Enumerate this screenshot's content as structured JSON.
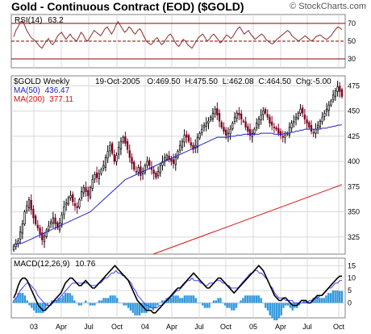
{
  "header": {
    "title": "Gold - Continuous Contract (EOD) ($GOLD)",
    "copyright": "© StockCharts.com"
  },
  "colors": {
    "panel_bg": "#ffffff",
    "grid": "#d8d8d8",
    "rsi_line": "#8b2a2a",
    "rsi_fill": "#c89a60",
    "rsi_bounds": "#8b0000",
    "candle_up": "#000000",
    "candle_down": "#800020",
    "ma50": "#2222cc",
    "ma200": "#dd1111",
    "macd": "#000000",
    "signal": "#4040ff",
    "histogram": "#3399dd"
  },
  "chart_data": [
    {
      "panel": "rsi",
      "type": "line",
      "label": "RSI(14)",
      "label_value": "63.2",
      "ylim": [
        20,
        80
      ],
      "yticks": [
        30,
        50,
        70
      ],
      "bounds": [
        30,
        70
      ],
      "midline": 50,
      "values": [
        55,
        62,
        66,
        71,
        73,
        68,
        62,
        58,
        54,
        52,
        50,
        47,
        44,
        42,
        46,
        50,
        53,
        48,
        46,
        50,
        55,
        58,
        60,
        56,
        52,
        55,
        58,
        54,
        52,
        50,
        55,
        60,
        57,
        52,
        50,
        54,
        58,
        62,
        60,
        58,
        56,
        60,
        64,
        66,
        62,
        58,
        62,
        68,
        72,
        68,
        64,
        60,
        62,
        66,
        64,
        60,
        58,
        62,
        64,
        60,
        55,
        50,
        48,
        46,
        48,
        52,
        54,
        50,
        46,
        48,
        52,
        56,
        58,
        55,
        50,
        46,
        44,
        48,
        52,
        50,
        46,
        44,
        42,
        46,
        50,
        54,
        56,
        58,
        54,
        50,
        52,
        56,
        58,
        55,
        52,
        48,
        50,
        54,
        57,
        55,
        53,
        56,
        60,
        64,
        66,
        62,
        58,
        60,
        62,
        58,
        55,
        52,
        54,
        56,
        58,
        56,
        52,
        50,
        48,
        47,
        49,
        52,
        54,
        56,
        58,
        60,
        62,
        60,
        56,
        54,
        52,
        50,
        52,
        54,
        56,
        54,
        52,
        50,
        52,
        55,
        56,
        57,
        55,
        53,
        52,
        54,
        56,
        60,
        63,
        66,
        65,
        63
      ]
    },
    {
      "panel": "price",
      "type": "candlestick",
      "label": "$GOLD Weekly",
      "date": "19-Oct-2005",
      "open_label": "O:",
      "open": "469.50",
      "high_label": "H:",
      "high": "475.50",
      "low_label": "L:",
      "low": "462.08",
      "close_label": "C:",
      "close": "464.50",
      "change_label": "Chg:",
      "change": "-5.00",
      "ylim": [
        308,
        485
      ],
      "yticks": [
        325,
        350,
        375,
        400,
        425,
        450,
        475
      ],
      "close_values": [
        316,
        318,
        321,
        330,
        338,
        350,
        356,
        362,
        352,
        344,
        338,
        334,
        328,
        322,
        326,
        332,
        336,
        340,
        344,
        338,
        334,
        339,
        347,
        355,
        359,
        364,
        366,
        360,
        356,
        354,
        362,
        370,
        374,
        370,
        366,
        374,
        382,
        387,
        384,
        388,
        392,
        396,
        404,
        410,
        416,
        408,
        400,
        406,
        414,
        420,
        424,
        418,
        412,
        404,
        398,
        392,
        390,
        394,
        386,
        390,
        396,
        400,
        396,
        392,
        388,
        384,
        390,
        396,
        400,
        404,
        406,
        402,
        400,
        398,
        404,
        410,
        416,
        420,
        426,
        424,
        420,
        416,
        412,
        416,
        424,
        428,
        432,
        436,
        438,
        440,
        444,
        448,
        452,
        446,
        440,
        434,
        430,
        426,
        428,
        432,
        438,
        444,
        448,
        446,
        442,
        440,
        434,
        430,
        426,
        428,
        432,
        438,
        442,
        446,
        450,
        448,
        444,
        438,
        436,
        434,
        432,
        428,
        426,
        424,
        426,
        428,
        434,
        438,
        440,
        444,
        448,
        452,
        448,
        442,
        438,
        434,
        430,
        428,
        432,
        436,
        440,
        444,
        448,
        452,
        456,
        460,
        466,
        470,
        474,
        469.5,
        464.5
      ],
      "indicators": [
        {
          "name": "MA(50)",
          "value": "436.47"
        },
        {
          "name": "MA(200)",
          "value": "377.11"
        }
      ],
      "ma50_values": [
        318,
        318,
        318,
        319,
        319,
        320,
        321,
        322,
        323,
        324,
        325,
        326,
        327,
        328,
        329,
        330,
        331,
        332,
        333,
        334,
        335,
        336,
        337,
        338,
        339,
        340,
        341,
        342,
        343,
        344,
        345,
        346,
        347,
        348,
        349,
        350,
        352,
        354,
        356,
        358,
        360,
        362,
        364,
        366,
        368,
        370,
        372,
        374,
        376,
        378,
        380,
        382,
        383,
        384,
        385,
        386,
        387,
        388,
        389,
        390,
        391,
        392,
        393,
        394,
        395,
        396,
        397,
        398,
        399,
        400,
        401,
        402,
        403,
        404,
        405,
        406,
        407,
        408,
        409,
        410,
        411,
        412,
        413,
        414,
        415,
        416,
        417,
        418,
        419,
        420,
        421,
        422,
        423,
        424,
        424,
        424,
        424,
        424,
        424,
        425,
        425,
        425,
        426,
        426,
        426,
        427,
        427,
        427,
        427,
        427,
        427,
        427,
        427,
        428,
        428,
        428,
        428,
        428,
        428,
        427,
        427,
        427,
        427,
        427,
        428,
        428,
        428,
        429,
        429,
        430,
        430,
        431,
        431,
        432,
        432,
        432,
        432,
        432,
        432,
        432,
        432,
        433,
        433,
        433,
        434,
        434,
        435,
        435,
        436,
        436,
        436.5
      ],
      "ma200_values": [
        308,
        309,
        310,
        311,
        312,
        313,
        314,
        315,
        316,
        317,
        318,
        319,
        320,
        321,
        322,
        323,
        324,
        325,
        326,
        327,
        328,
        329,
        330,
        331,
        332,
        333,
        334,
        335,
        336,
        337,
        338,
        339,
        340,
        341,
        342,
        343,
        344,
        345,
        346,
        347,
        348,
        349,
        350,
        351,
        352,
        353,
        354,
        355,
        356,
        357,
        358,
        359,
        360,
        361,
        362,
        363,
        364,
        365,
        366,
        367,
        368,
        369,
        370,
        371,
        372,
        373,
        374,
        375,
        376,
        377.11
      ]
    },
    {
      "panel": "macd",
      "type": "line",
      "label": "MACD(12,26,9)",
      "label_value": "10.76",
      "ylim": [
        -6,
        18
      ],
      "yticks": [
        0,
        5,
        10,
        15
      ],
      "macd_values": [
        2,
        4,
        7,
        9,
        10,
        10,
        9,
        7,
        5,
        3,
        1,
        -1,
        -2,
        -3,
        -3,
        -2,
        -1,
        0,
        1,
        2,
        3,
        4,
        6,
        8,
        9,
        10,
        10,
        9,
        8,
        7,
        7,
        8,
        9,
        8,
        7,
        6,
        6,
        7,
        8,
        9,
        10,
        11,
        12,
        13,
        14,
        15,
        14,
        13,
        12,
        11,
        10,
        9,
        7,
        5,
        3,
        1,
        0,
        -1,
        -2,
        -3,
        -3,
        -3,
        -4,
        -4,
        -3,
        -2,
        -1,
        0,
        1,
        2,
        3,
        4,
        5,
        6,
        6,
        7,
        8,
        9,
        10,
        11,
        12,
        11,
        10,
        9,
        8,
        7,
        6,
        6,
        7,
        8,
        9,
        10,
        10,
        9,
        8,
        7,
        6,
        5,
        4,
        5,
        6,
        7,
        8,
        9,
        10,
        11,
        12,
        13,
        14,
        15,
        14,
        13,
        11,
        9,
        7,
        5,
        3,
        2,
        1,
        1,
        2,
        2,
        1,
        0,
        -1,
        -1,
        -1,
        0,
        1,
        1,
        1,
        0,
        0,
        1,
        2,
        3,
        3,
        3,
        4,
        5,
        6,
        7,
        8,
        9,
        10,
        10.76,
        10.76
      ],
      "signal_values": [
        1,
        2,
        3,
        5,
        6,
        7,
        8,
        8,
        7,
        6,
        5,
        3,
        2,
        1,
        0,
        -1,
        -1,
        -1,
        0,
        1,
        1,
        2,
        3,
        4,
        5,
        6,
        7,
        8,
        8,
        8,
        8,
        8,
        8,
        8,
        8,
        7,
        7,
        7,
        7,
        8,
        8,
        9,
        10,
        10,
        11,
        12,
        12,
        13,
        12,
        12,
        11,
        11,
        10,
        9,
        8,
        6,
        5,
        3,
        2,
        1,
        0,
        -1,
        -1,
        -2,
        -2,
        -2,
        -2,
        -1,
        -1,
        0,
        1,
        1,
        2,
        3,
        4,
        5,
        5,
        6,
        7,
        8,
        9,
        9,
        10,
        9,
        9,
        9,
        8,
        8,
        7,
        7,
        8,
        8,
        8,
        9,
        9,
        9,
        8,
        8,
        7,
        7,
        6,
        6,
        6,
        6,
        7,
        8,
        9,
        10,
        11,
        12,
        12,
        13,
        13,
        12,
        12,
        11,
        10,
        9,
        7,
        6,
        4,
        3,
        2,
        2,
        2,
        1,
        1,
        1,
        1,
        0,
        0,
        0,
        0,
        0,
        0,
        0,
        1,
        1,
        2,
        2,
        2,
        3,
        3,
        4,
        5,
        6,
        6,
        7,
        8,
        8,
        9,
        9
      ]
    }
  ],
  "x_axis": {
    "labels": [
      "03",
      "Apr",
      "Jul",
      "Oct",
      "04",
      "Apr",
      "Jul",
      "Oct",
      "05",
      "Apr",
      "Jul",
      "Oct"
    ]
  }
}
